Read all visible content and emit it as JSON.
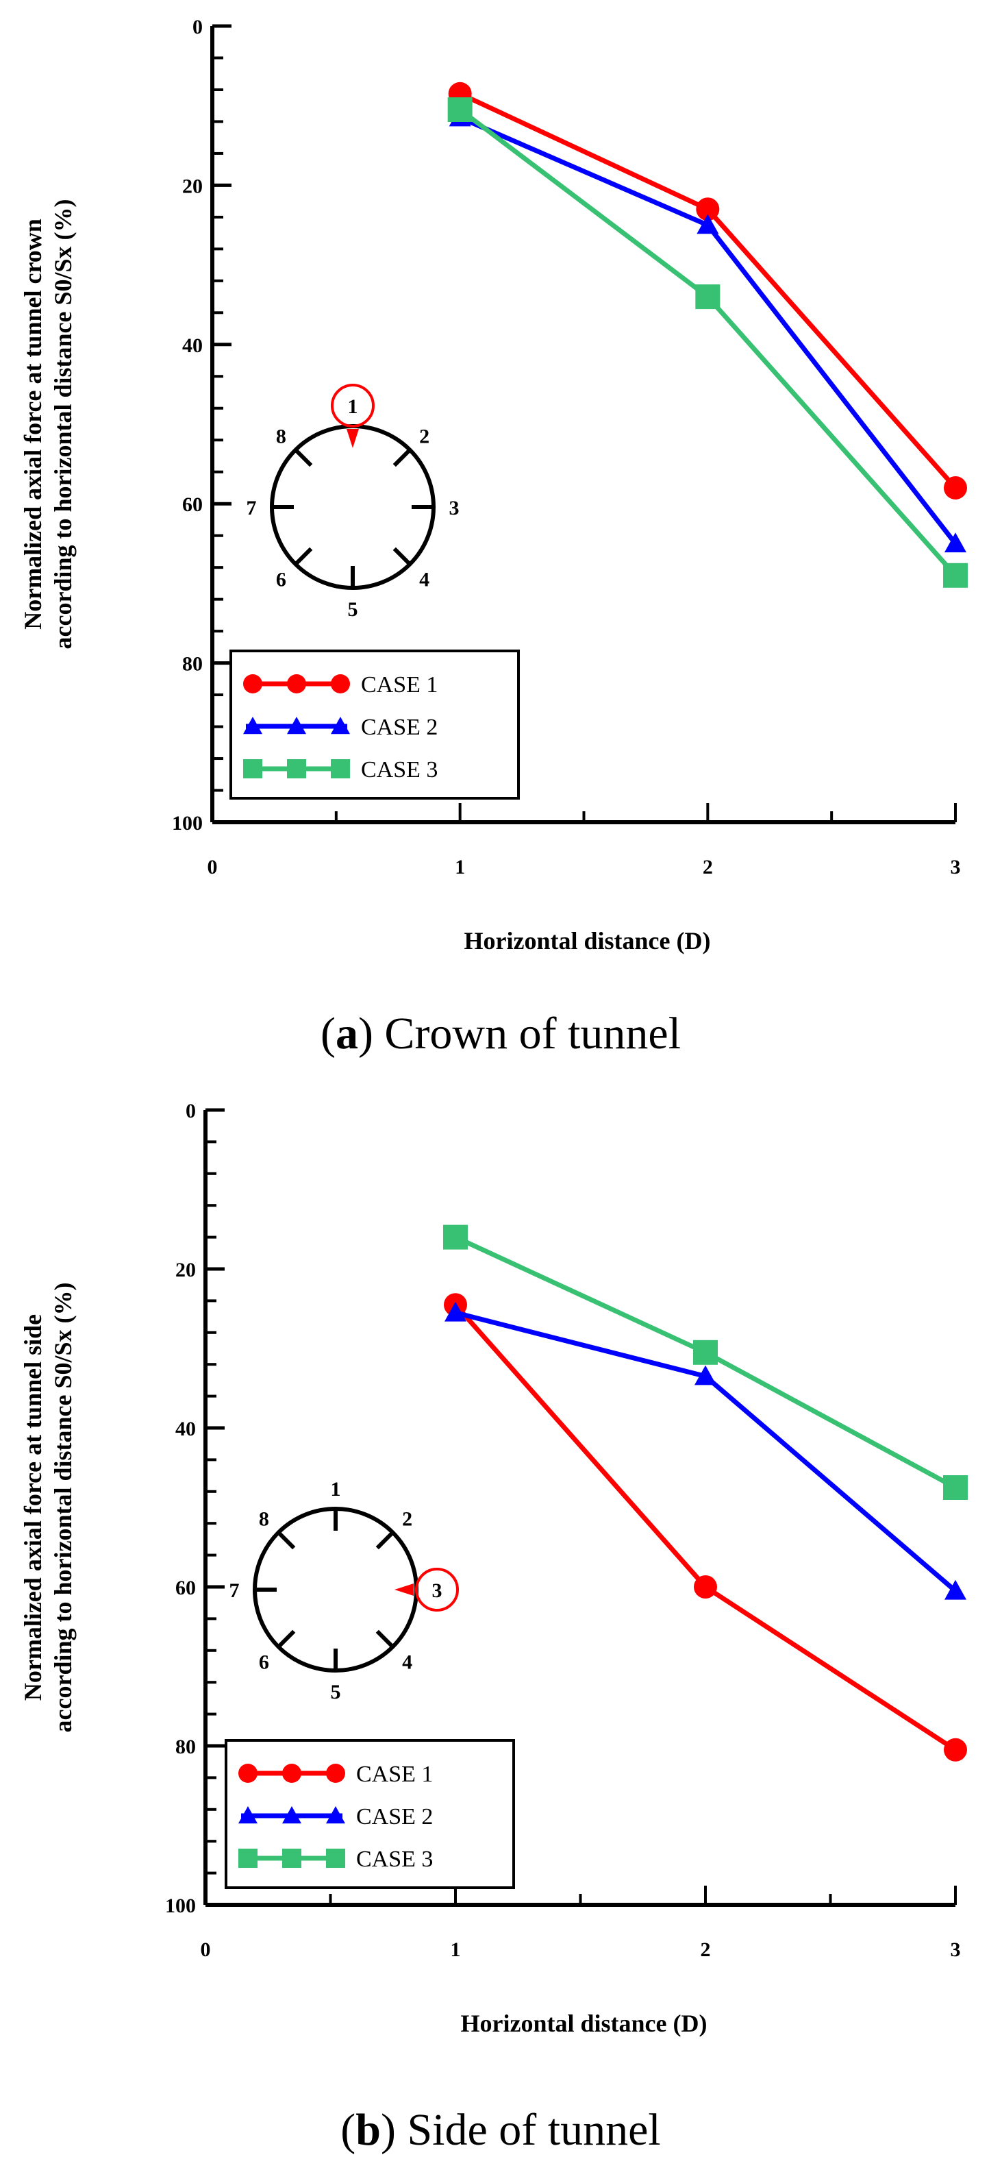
{
  "chart_data": [
    {
      "id": "a",
      "type": "line",
      "caption_letter": "a",
      "caption_text": "Crown of tunnel",
      "ylabel_line1": "Normalized axial force at tunnel crown",
      "ylabel_line2": "according to horizontal distance S0/Sx (%)",
      "xlabel": "Horizontal distance (D)",
      "x_ticks": [
        "0",
        "1",
        "2",
        "3"
      ],
      "y_ticks": [
        "0",
        "20",
        "40",
        "60",
        "80",
        "100"
      ],
      "xlim": [
        0,
        3
      ],
      "ylim": [
        0,
        100
      ],
      "y_inverted": true,
      "x": [
        1,
        2,
        3
      ],
      "series": [
        {
          "name": "CASE 1",
          "color": "#ff0000",
          "marker": "circle",
          "values": [
            8.5,
            23,
            58
          ]
        },
        {
          "name": "CASE 2",
          "color": "#0000ff",
          "marker": "triangle",
          "values": [
            11.5,
            25,
            65
          ]
        },
        {
          "name": "CASE 3",
          "color": "#38c172",
          "marker": "square",
          "values": [
            10.5,
            34,
            69
          ]
        }
      ],
      "inset": {
        "numbers": [
          "1",
          "2",
          "3",
          "4",
          "5",
          "6",
          "7",
          "8"
        ],
        "highlight": "1",
        "highlight_color": "#ff0000"
      },
      "legend_position": "bottom-left"
    },
    {
      "id": "b",
      "type": "line",
      "caption_letter": "b",
      "caption_text": "Side of tunnel",
      "ylabel_line1": "Normalized axial force at tunnel side",
      "ylabel_line2": "according to horizontal distance S0/Sx (%)",
      "xlabel": "Horizontal distance (D)",
      "x_ticks": [
        "0",
        "1",
        "2",
        "3"
      ],
      "y_ticks": [
        "0",
        "20",
        "40",
        "60",
        "80",
        "100"
      ],
      "xlim": [
        0,
        3
      ],
      "ylim": [
        0,
        100
      ],
      "y_inverted": true,
      "x": [
        1,
        2,
        3
      ],
      "series": [
        {
          "name": "CASE 1",
          "color": "#ff0000",
          "marker": "circle",
          "values": [
            24.5,
            60,
            80.5
          ]
        },
        {
          "name": "CASE 2",
          "color": "#0000ff",
          "marker": "triangle",
          "values": [
            25.5,
            33.5,
            60.5
          ]
        },
        {
          "name": "CASE 3",
          "color": "#38c172",
          "marker": "square",
          "values": [
            16,
            30.5,
            47.5
          ]
        }
      ],
      "inset": {
        "numbers": [
          "1",
          "2",
          "3",
          "4",
          "5",
          "6",
          "7",
          "8"
        ],
        "highlight": "3",
        "highlight_color": "#ff0000"
      },
      "legend_position": "bottom-left"
    }
  ]
}
